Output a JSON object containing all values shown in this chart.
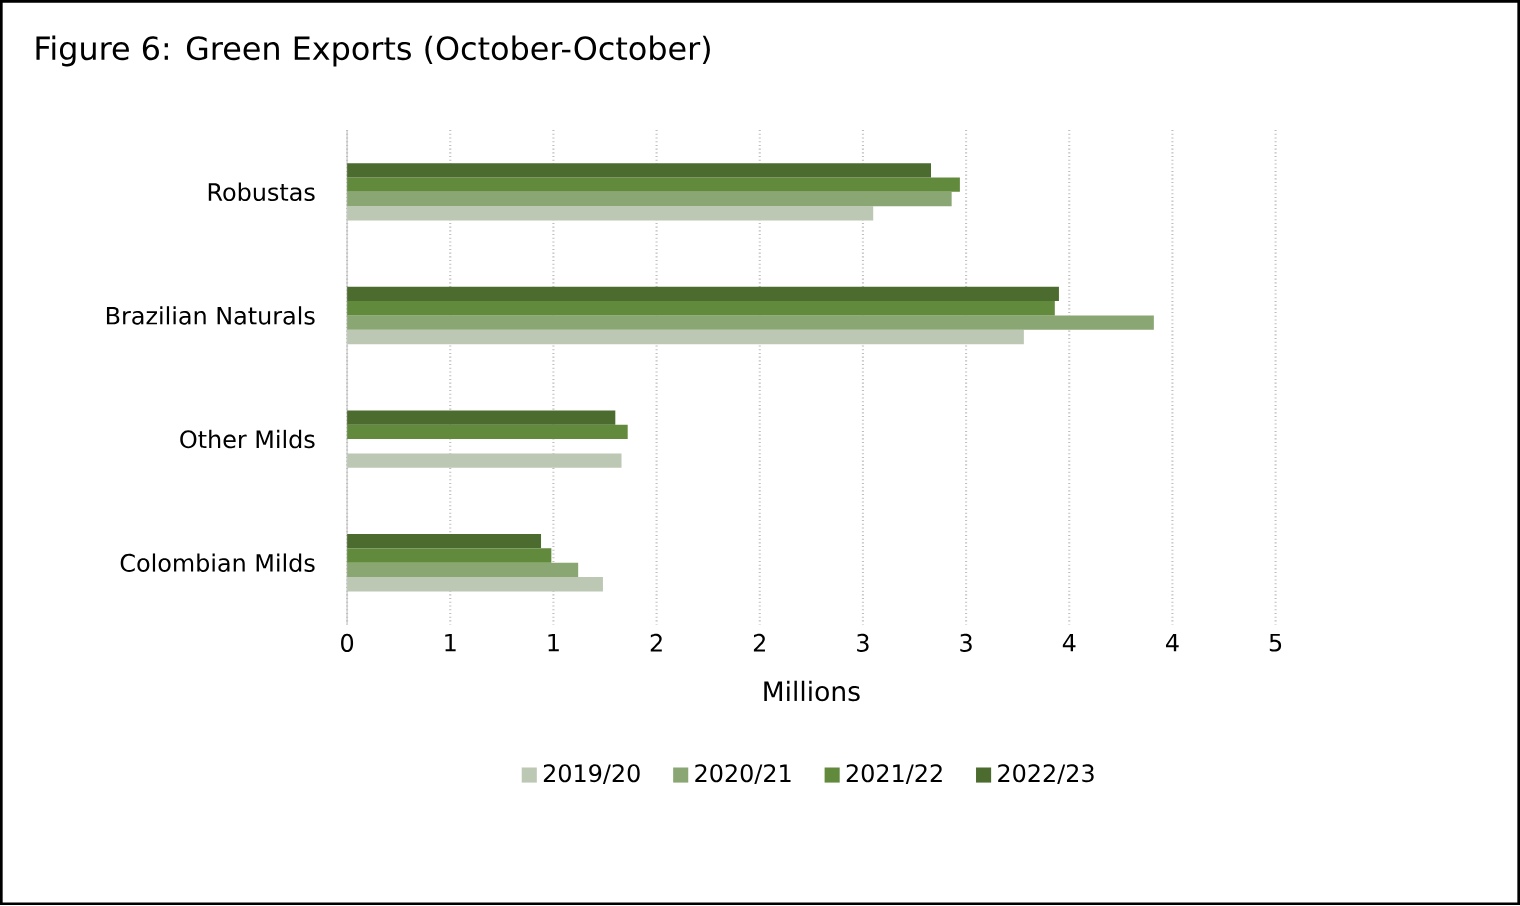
{
  "chart_data": {
    "type": "bar",
    "orientation": "horizontal",
    "title": "Figure 6: Green Exports (October-October)",
    "xlabel": "Millions",
    "categories": [
      "Robustas",
      "Brazilian Naturals",
      "Other Milds",
      "Colombian Milds"
    ],
    "series": [
      {
        "name": "2019/20",
        "color": "#bcc8b3",
        "values": [
          2.55,
          3.28,
          1.33,
          1.24
        ]
      },
      {
        "name": "2020/21",
        "color": "#8aa673",
        "values": [
          2.93,
          3.91,
          null,
          1.12
        ]
      },
      {
        "name": "2021/22",
        "color": "#628a3c",
        "values": [
          2.97,
          3.43,
          1.36,
          0.99
        ]
      },
      {
        "name": "2022/23",
        "color": "#4c6b2e",
        "values": [
          2.83,
          3.45,
          1.3,
          0.94
        ]
      }
    ],
    "xlim": [
      0,
      4.5
    ],
    "xticks": [
      0,
      {
        "value": 0.5,
        "label": "1"
      },
      1,
      {
        "value": 1.5,
        "label": "2"
      },
      2,
      {
        "value": 2.5,
        "label": "3"
      },
      3,
      {
        "value": 3.5,
        "label": "4"
      },
      4,
      {
        "value": 4.5,
        "label": "5"
      }
    ],
    "grid": "x",
    "legend": "bottom"
  }
}
